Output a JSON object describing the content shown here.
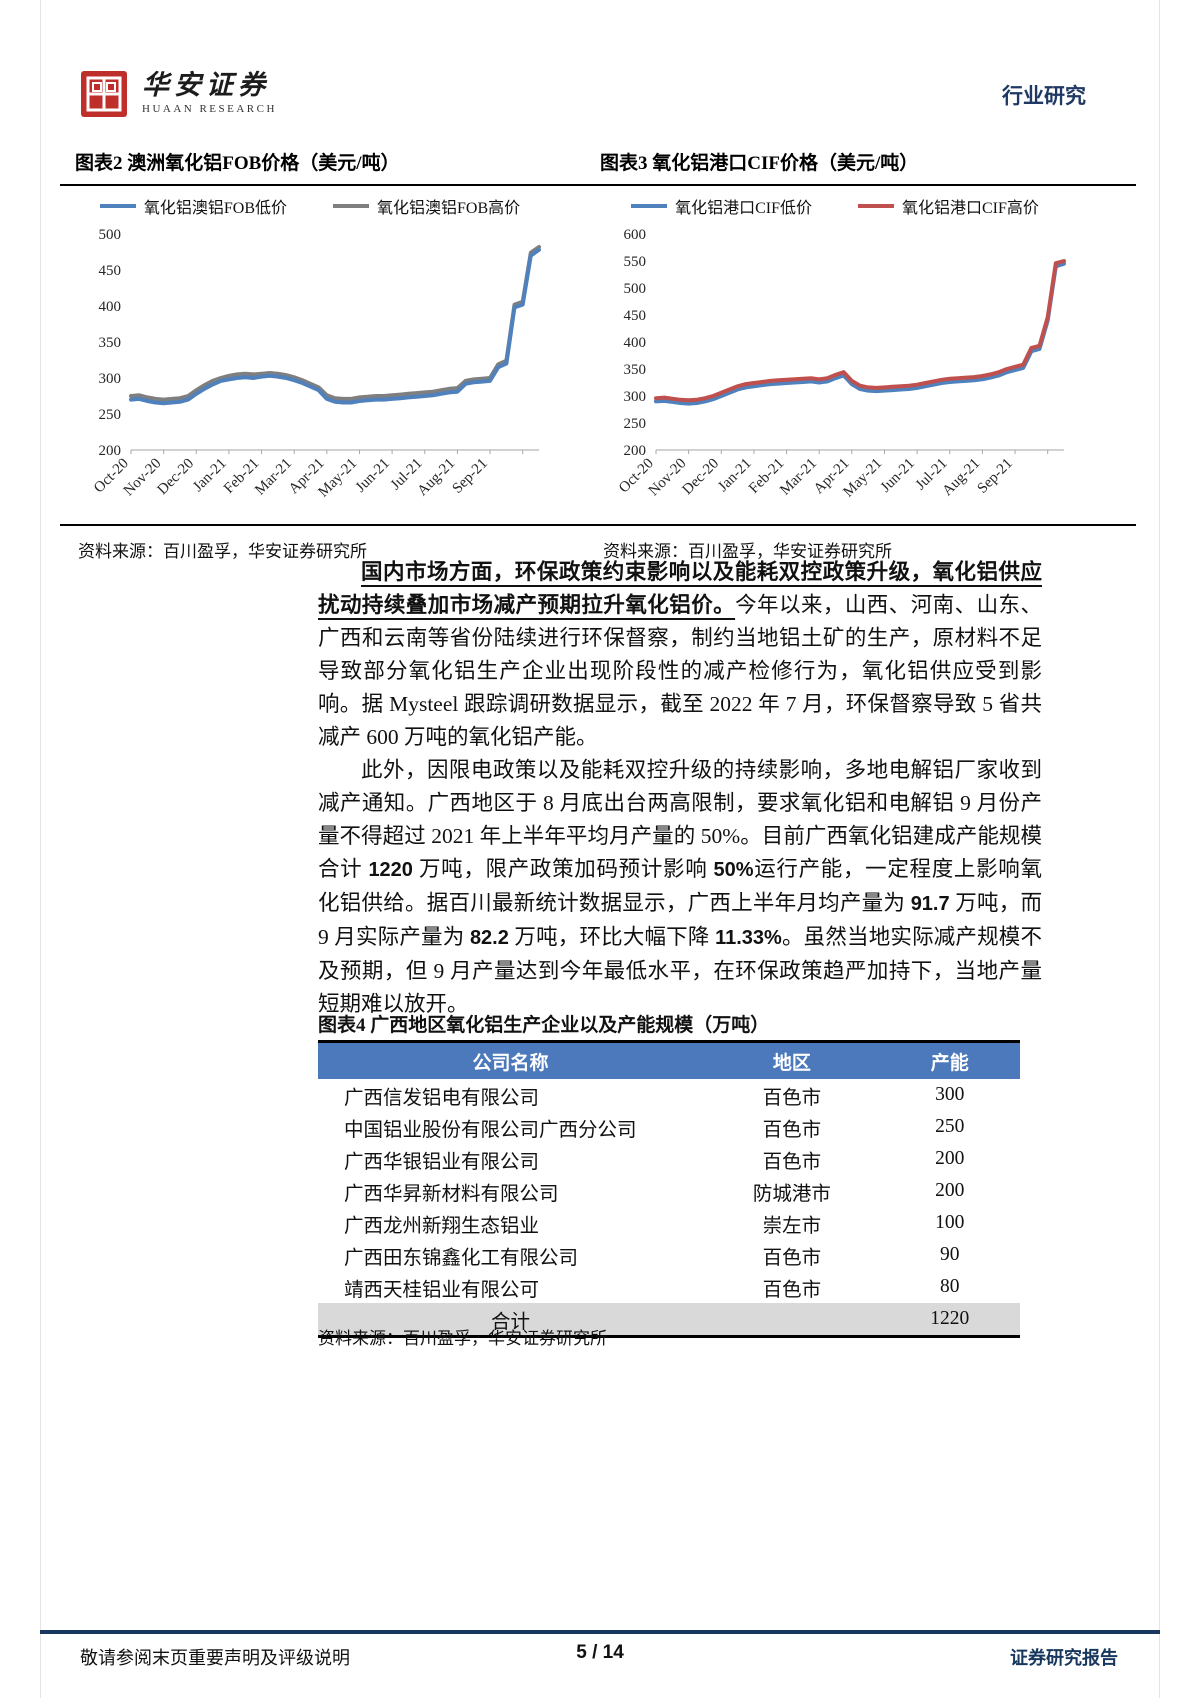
{
  "header": {
    "logo_cn": "华安证券",
    "logo_en": "HUAAN RESEARCH",
    "category": "行业研究",
    "logo_red": "#be2f2b",
    "navy": "#1f3864"
  },
  "charts_section": {
    "left": {
      "title": "图表2 澳洲氧化铝FOB价格（美元/吨）",
      "source": "资料来源：百川盈孚，华安证券研究所"
    },
    "right": {
      "title": "图表3 氧化铝港口CIF价格（美元/吨）",
      "source": "资料来源：百川盈孚，华安证券研究所"
    }
  },
  "chart_data": [
    {
      "type": "line",
      "title": "澳洲氧化铝FOB价格（美元/吨）",
      "x_labels": [
        "Oct-20",
        "Nov-20",
        "Dec-20",
        "Jan-21",
        "Feb-21",
        "Mar-21",
        "Apr-21",
        "May-21",
        "Jun-21",
        "Jul-21",
        "Aug-21",
        "Sep-21"
      ],
      "ylim": [
        200,
        500
      ],
      "ytick_step": 50,
      "grid": false,
      "legend_position": "top",
      "draw_order": [
        1,
        0
      ],
      "series": [
        {
          "name": "氧化铝澳铝FOB低价",
          "color": "#4f81bd",
          "values": [
            270,
            271,
            268,
            266,
            265,
            266,
            267,
            270,
            278,
            285,
            291,
            296,
            298,
            300,
            301,
            300,
            302,
            303,
            302,
            300,
            297,
            293,
            288,
            283,
            271,
            267,
            266,
            266,
            268,
            269,
            270,
            270,
            271,
            272,
            273,
            274,
            275,
            276,
            278,
            280,
            281,
            292,
            294,
            295,
            296,
            315,
            320,
            398,
            402,
            470,
            478
          ]
        },
        {
          "name": "氧化铝澳铝FOB高价",
          "color": "#7f7f7f",
          "values": [
            275,
            276,
            273,
            271,
            270,
            271,
            272,
            275,
            283,
            290,
            296,
            300,
            303,
            305,
            306,
            305,
            306,
            307,
            306,
            304,
            301,
            297,
            292,
            287,
            276,
            272,
            271,
            271,
            273,
            274,
            275,
            275,
            276,
            277,
            278,
            279,
            280,
            281,
            283,
            285,
            286,
            296,
            298,
            299,
            300,
            319,
            324,
            402,
            406,
            474,
            482
          ]
        }
      ]
    },
    {
      "type": "line",
      "title": "氧化铝港口CIF价格（美元/吨）",
      "x_labels": [
        "Oct-20",
        "Nov-20",
        "Dec-20",
        "Jan-21",
        "Feb-21",
        "Mar-21",
        "Apr-21",
        "May-21",
        "Jun-21",
        "Jul-21",
        "Aug-21",
        "Sep-21"
      ],
      "ylim": [
        200,
        600
      ],
      "ytick_step": 50,
      "grid": false,
      "legend_position": "top",
      "draw_order": [
        0,
        1
      ],
      "series": [
        {
          "name": "氧化铝港口CIF低价",
          "color": "#4f81bd",
          "values": [
            290,
            291,
            289,
            287,
            286,
            287,
            290,
            294,
            300,
            306,
            312,
            316,
            318,
            320,
            322,
            323,
            324,
            325,
            326,
            327,
            325,
            327,
            333,
            338,
            322,
            313,
            310,
            309,
            310,
            311,
            312,
            313,
            315,
            318,
            321,
            324,
            326,
            327,
            328,
            329,
            331,
            334,
            338,
            344,
            348,
            352,
            383,
            387,
            440,
            540,
            545
          ]
        },
        {
          "name": "氧化铝港口CIF高价",
          "color": "#c0504d",
          "values": [
            296,
            297,
            295,
            293,
            292,
            293,
            296,
            300,
            306,
            312,
            318,
            322,
            324,
            326,
            328,
            329,
            330,
            331,
            332,
            333,
            331,
            333,
            339,
            344,
            328,
            319,
            316,
            315,
            316,
            317,
            318,
            319,
            321,
            324,
            327,
            330,
            332,
            333,
            334,
            335,
            337,
            340,
            344,
            350,
            354,
            358,
            389,
            393,
            446,
            546,
            550
          ]
        }
      ]
    }
  ],
  "paragraphs": [
    {
      "segments": [
        {
          "text": "国内市场方面，环保政策约束影响以及能耗双控政策升级，氧化铝供应扰动持续叠加市场减产预期拉升氧化铝价。",
          "bold": true,
          "underline": true
        },
        {
          "text": "今年以来，山西、河南、山东、广西和云南等省份陆续进行环保督察，制约当地铝土矿的生产，原材料不足导致部分氧化铝生产企业出现阶段性的减产检修行为，氧化铝供应受到影响。据 Mysteel 跟踪调研数据显示，截至 2022 年 7 月，环保督察导致 5 省共减产 600 万吨的氧化铝产能。"
        }
      ]
    },
    {
      "segments": [
        {
          "text": "此外，因限电政策以及能耗双控升级的持续影响，多地电解铝厂家收到减产通知。广西地区于 8 月底出台两高限制，要求氧化铝和电解铝 9 月份产量不得超过 2021 年上半年平均月产量的 50%。目前广西氧化铝建成产能规模合计 "
        },
        {
          "text": "1220",
          "bold": true,
          "sans": true
        },
        {
          "text": " 万吨，限产政策加码预计影响 "
        },
        {
          "text": "50%",
          "bold": true,
          "sans": true
        },
        {
          "text": "运行产能，一定程度上影响氧化铝供给。据百川最新统计数据显示，广西上半年月均产量为 "
        },
        {
          "text": "91.7",
          "bold": true,
          "sans": true
        },
        {
          "text": " 万吨，而 9 月实际产量为 "
        },
        {
          "text": "82.2",
          "bold": true,
          "sans": true
        },
        {
          "text": " 万吨，环比大幅下降 "
        },
        {
          "text": "11.33%",
          "bold": true,
          "sans": true
        },
        {
          "text": "。虽然当地实际减产规模不及预期，但 9 月产量达到今年最低水平，在环保政策趋严加持下，当地产量短期难以放开。"
        }
      ]
    }
  ],
  "table_section": {
    "title": "图表4 广西地区氧化铝生产企业以及产能规模（万吨）",
    "header_bg": "#4b79bc",
    "columns": [
      "公司名称",
      "地区",
      "产能"
    ],
    "rows": [
      [
        "广西信发铝电有限公司",
        "百色市",
        "300"
      ],
      [
        "中国铝业股份有限公司广西分公司",
        "百色市",
        "250"
      ],
      [
        "广西华银铝业有限公司",
        "百色市",
        "200"
      ],
      [
        "广西华昇新材料有限公司",
        "防城港市",
        "200"
      ],
      [
        "广西龙州新翔生态铝业",
        "崇左市",
        "100"
      ],
      [
        "广西田东锦鑫化工有限公司",
        "百色市",
        "90"
      ],
      [
        "靖西天桂铝业有限公可",
        "百色市",
        "80"
      ]
    ],
    "total_row": {
      "label": "合计",
      "region": "",
      "value": "1220"
    },
    "source": "资料来源：百川盈孚，华安证券研究所"
  },
  "footer": {
    "left": "敬请参阅末页重要声明及评级说明",
    "center": "5 / 14",
    "right": "证券研究报告"
  }
}
